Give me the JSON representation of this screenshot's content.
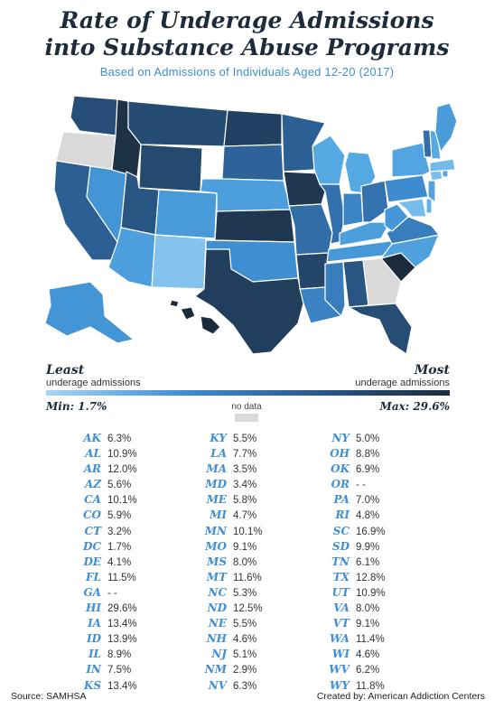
{
  "title_line1": "Rate of Underage Admissions",
  "title_line2": "into Substance Abuse Programs",
  "subtitle": "Based on Admissions of Individuals Aged 12-20 (2017)",
  "legend": {
    "least": "Least",
    "least_sub": "underage admissions",
    "most": "Most",
    "most_sub": "underage admissions",
    "min": "Min: 1.7%",
    "max": "Max: 29.6%",
    "no_data": "no data",
    "color_low": "#a9d6f5",
    "color_high": "#1c2b3c",
    "color_no_data": "#d9d9d9"
  },
  "rates": [
    [
      {
        "state": "AK",
        "value": "6.3%"
      },
      {
        "state": "AL",
        "value": "10.9%"
      },
      {
        "state": "AR",
        "value": "12.0%"
      },
      {
        "state": "AZ",
        "value": "5.6%"
      },
      {
        "state": "CA",
        "value": "10.1%"
      },
      {
        "state": "CO",
        "value": "5.9%"
      },
      {
        "state": "CT",
        "value": "3.2%"
      },
      {
        "state": "DC",
        "value": "1.7%"
      },
      {
        "state": "DE",
        "value": "4.1%"
      },
      {
        "state": "FL",
        "value": "11.5%"
      },
      {
        "state": "GA",
        "value": "- -"
      },
      {
        "state": "HI",
        "value": "29.6%"
      },
      {
        "state": "IA",
        "value": "13.4%"
      },
      {
        "state": "ID",
        "value": "13.9%"
      },
      {
        "state": "IL",
        "value": "8.9%"
      },
      {
        "state": "IN",
        "value": "7.5%"
      },
      {
        "state": "KS",
        "value": "13.4%"
      }
    ],
    [
      {
        "state": "KY",
        "value": "5.5%"
      },
      {
        "state": "LA",
        "value": "7.7%"
      },
      {
        "state": "MA",
        "value": "3.5%"
      },
      {
        "state": "MD",
        "value": "3.4%"
      },
      {
        "state": "ME",
        "value": "5.8%"
      },
      {
        "state": "MI",
        "value": "4.7%"
      },
      {
        "state": "MN",
        "value": "10.1%"
      },
      {
        "state": "MO",
        "value": "9.1%"
      },
      {
        "state": "MS",
        "value": "8.0%"
      },
      {
        "state": "MT",
        "value": "11.6%"
      },
      {
        "state": "NC",
        "value": "5.3%"
      },
      {
        "state": "ND",
        "value": "12.5%"
      },
      {
        "state": "NE",
        "value": "5.5%"
      },
      {
        "state": "NH",
        "value": "4.6%"
      },
      {
        "state": "NJ",
        "value": "5.1%"
      },
      {
        "state": "NM",
        "value": "2.9%"
      },
      {
        "state": "NV",
        "value": "6.3%"
      }
    ],
    [
      {
        "state": "NY",
        "value": "5.0%"
      },
      {
        "state": "OH",
        "value": "8.8%"
      },
      {
        "state": "OK",
        "value": "6.9%"
      },
      {
        "state": "OR",
        "value": "- -"
      },
      {
        "state": "PA",
        "value": "7.0%"
      },
      {
        "state": "RI",
        "value": "4.8%"
      },
      {
        "state": "SC",
        "value": "16.9%"
      },
      {
        "state": "SD",
        "value": "9.9%"
      },
      {
        "state": "TN",
        "value": "6.1%"
      },
      {
        "state": "TX",
        "value": "12.8%"
      },
      {
        "state": "UT",
        "value": "10.9%"
      },
      {
        "state": "VA",
        "value": "8.0%"
      },
      {
        "state": "VT",
        "value": "9.1%"
      },
      {
        "state": "WA",
        "value": "11.4%"
      },
      {
        "state": "WI",
        "value": "4.6%"
      },
      {
        "state": "WV",
        "value": "6.2%"
      },
      {
        "state": "WY",
        "value": "11.8%"
      }
    ]
  ],
  "source": "Source: SAMHSA",
  "credit": "Created by: American Addiction Centers"
}
